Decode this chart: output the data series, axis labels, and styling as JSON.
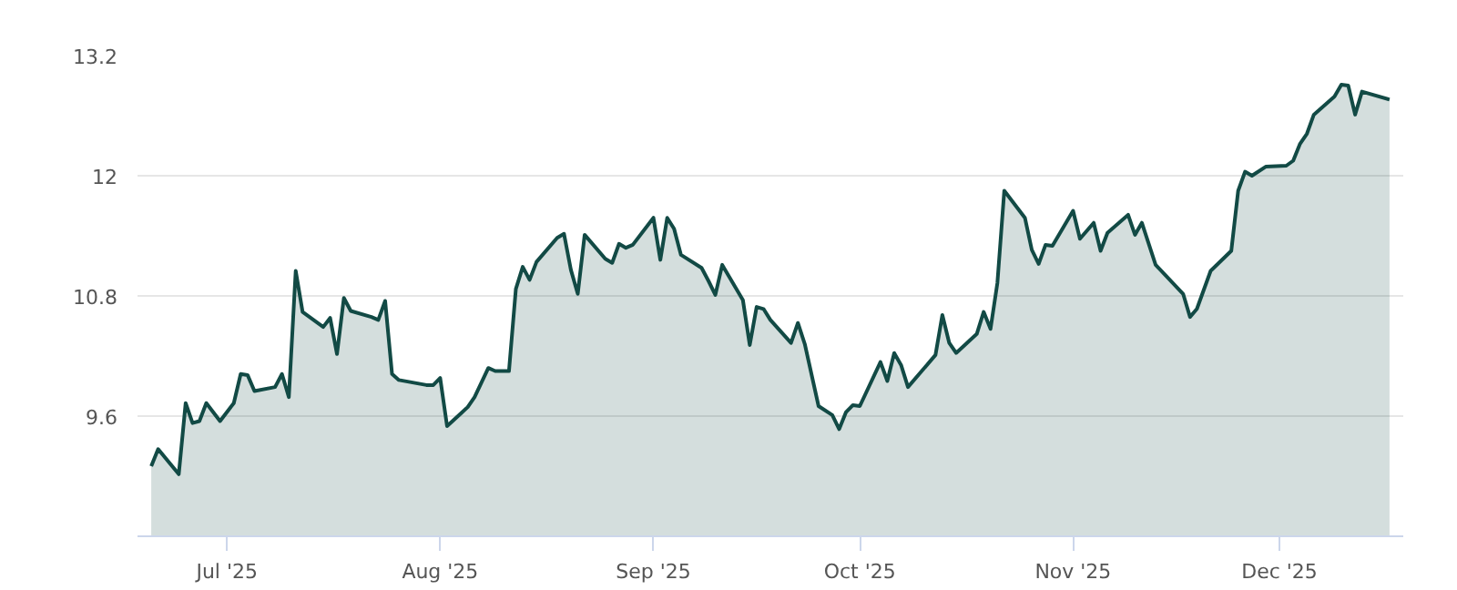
{
  "chart_data": {
    "type": "area",
    "x": [
      "2025-06-20",
      "2025-06-21",
      "2025-06-24",
      "2025-06-25",
      "2025-06-26",
      "2025-06-27",
      "2025-06-28",
      "2025-06-30",
      "2025-07-02",
      "2025-07-03",
      "2025-07-04",
      "2025-07-05",
      "2025-07-08",
      "2025-07-09",
      "2025-07-10",
      "2025-07-11",
      "2025-07-12",
      "2025-07-15",
      "2025-07-16",
      "2025-07-17",
      "2025-07-18",
      "2025-07-19",
      "2025-07-22",
      "2025-07-23",
      "2025-07-24",
      "2025-07-25",
      "2025-07-26",
      "2025-07-30",
      "2025-07-31",
      "2025-08-01",
      "2025-08-02",
      "2025-08-05",
      "2025-08-06",
      "2025-08-08",
      "2025-08-09",
      "2025-08-11",
      "2025-08-12",
      "2025-08-13",
      "2025-08-14",
      "2025-08-15",
      "2025-08-18",
      "2025-08-19",
      "2025-08-20",
      "2025-08-21",
      "2025-08-22",
      "2025-08-25",
      "2025-08-26",
      "2025-08-27",
      "2025-08-28",
      "2025-08-29",
      "2025-09-01",
      "2025-09-02",
      "2025-09-03",
      "2025-09-04",
      "2025-09-05",
      "2025-09-08",
      "2025-09-09",
      "2025-09-10",
      "2025-09-11",
      "2025-09-14",
      "2025-09-15",
      "2025-09-16",
      "2025-09-17",
      "2025-09-18",
      "2025-09-21",
      "2025-09-22",
      "2025-09-23",
      "2025-09-25",
      "2025-09-27",
      "2025-09-28",
      "2025-09-29",
      "2025-09-30",
      "2025-10-01",
      "2025-10-04",
      "2025-10-05",
      "2025-10-06",
      "2025-10-07",
      "2025-10-08",
      "2025-10-12",
      "2025-10-13",
      "2025-10-14",
      "2025-10-15",
      "2025-10-18",
      "2025-10-19",
      "2025-10-20",
      "2025-10-21",
      "2025-10-22",
      "2025-10-25",
      "2025-10-26",
      "2025-10-27",
      "2025-10-28",
      "2025-10-29",
      "2025-11-01",
      "2025-11-02",
      "2025-11-04",
      "2025-11-05",
      "2025-11-06",
      "2025-11-09",
      "2025-11-10",
      "2025-11-11",
      "2025-11-13",
      "2025-11-17",
      "2025-11-18",
      "2025-11-19",
      "2025-11-21",
      "2025-11-24",
      "2025-11-25",
      "2025-11-26",
      "2025-11-27",
      "2025-11-29",
      "2025-12-02",
      "2025-12-03",
      "2025-12-04",
      "2025-12-05",
      "2025-12-06",
      "2025-12-09",
      "2025-12-10",
      "2025-12-11",
      "2025-12-12",
      "2025-12-13",
      "2025-12-17"
    ],
    "series": [
      {
        "color": "#124a45",
        "values": [
          9.1,
          9.27,
          9.02,
          9.73,
          9.53,
          9.55,
          9.73,
          9.55,
          9.73,
          10.02,
          10.01,
          9.85,
          9.89,
          10.02,
          9.79,
          11.05,
          10.64,
          10.49,
          10.58,
          10.22,
          10.78,
          10.65,
          10.59,
          10.56,
          10.75,
          10.02,
          9.96,
          9.91,
          9.91,
          9.98,
          9.5,
          9.69,
          9.79,
          10.08,
          10.05,
          10.05,
          10.87,
          11.09,
          10.96,
          11.14,
          11.38,
          11.42,
          11.06,
          10.82,
          11.41,
          11.17,
          11.13,
          11.32,
          11.28,
          11.31,
          11.58,
          11.16,
          11.58,
          11.47,
          11.21,
          11.08,
          10.95,
          10.81,
          11.11,
          10.76,
          10.31,
          10.69,
          10.67,
          10.56,
          10.33,
          10.53,
          10.32,
          9.7,
          9.61,
          9.47,
          9.64,
          9.71,
          9.7,
          10.14,
          9.95,
          10.23,
          10.11,
          9.89,
          10.21,
          10.61,
          10.33,
          10.23,
          10.42,
          10.64,
          10.47,
          10.93,
          11.85,
          11.58,
          11.26,
          11.12,
          11.31,
          11.3,
          11.65,
          11.37,
          11.53,
          11.25,
          11.43,
          11.61,
          11.41,
          11.53,
          11.11,
          10.82,
          10.59,
          10.67,
          11.05,
          11.25,
          11.85,
          12.04,
          12.0,
          12.09,
          12.1,
          12.15,
          12.32,
          12.42,
          12.61,
          12.79,
          12.91,
          12.9,
          12.61,
          12.84,
          12.76
        ]
      }
    ],
    "xlim": [
      "2025-06-18",
      "2025-12-19"
    ],
    "xticks": [
      {
        "value": "2025-07-01",
        "label": "Jul '25"
      },
      {
        "value": "2025-08-01",
        "label": "Aug '25"
      },
      {
        "value": "2025-09-01",
        "label": "Sep '25"
      },
      {
        "value": "2025-10-01",
        "label": "Oct '25"
      },
      {
        "value": "2025-11-01",
        "label": "Nov '25"
      },
      {
        "value": "2025-12-01",
        "label": "Dec '25"
      }
    ],
    "ylim": [
      8.4,
      13.2
    ],
    "yticks": [
      9.6,
      10.8,
      12,
      13.2
    ],
    "grid": "y"
  }
}
